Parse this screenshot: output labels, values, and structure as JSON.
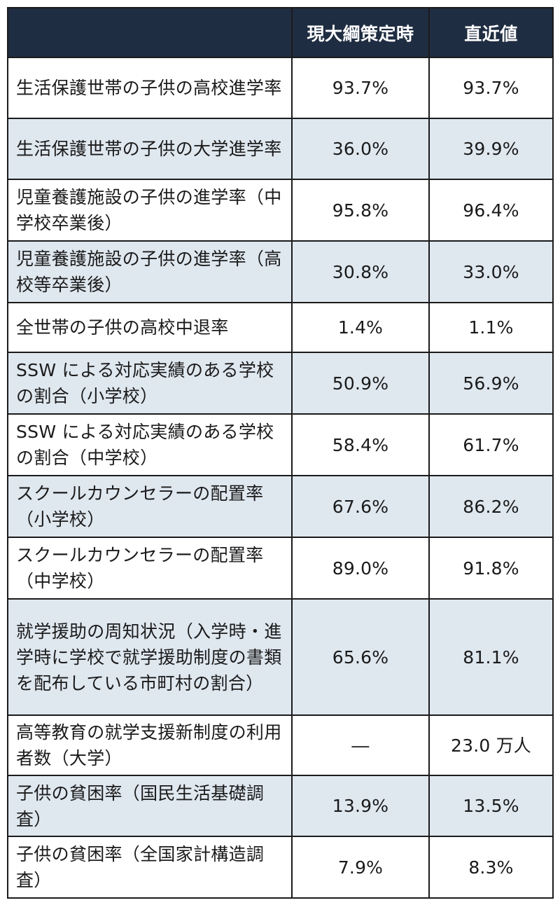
{
  "table": {
    "headers": [
      "",
      "現大綱策定時",
      "直近値"
    ],
    "rows": [
      {
        "label": "生活保護世帯の子供の高校進学率",
        "current_outline": "93.7%",
        "latest": "93.7%"
      },
      {
        "label": "生活保護世帯の子供の大学進学率",
        "current_outline": "36.0%",
        "latest": "39.9%"
      },
      {
        "label": "児童養護施設の子供の進学率（中学校卒業後）",
        "current_outline": "95.8%",
        "latest": "96.4%"
      },
      {
        "label": "児童養護施設の子供の進学率（高校等卒業後）",
        "current_outline": "30.8%",
        "latest": "33.0%"
      },
      {
        "label": "全世帯の子供の高校中退率",
        "current_outline": "1.4%",
        "latest": "1.1%"
      },
      {
        "label": "SSW による対応実績のある学校の割合（小学校）",
        "current_outline": "50.9%",
        "latest": "56.9%"
      },
      {
        "label": "SSW による対応実績のある学校の割合（中学校）",
        "current_outline": "58.4%",
        "latest": "61.7%"
      },
      {
        "label": "スクールカウンセラーの配置率（小学校）",
        "current_outline": "67.6%",
        "latest": "86.2%"
      },
      {
        "label": "スクールカウンセラーの配置率（中学校）",
        "current_outline": "89.0%",
        "latest": "91.8%"
      },
      {
        "label": "就学援助の周知状況（入学時・進学時に学校で就学援助制度の書類を配布している市町村の割合）",
        "current_outline": "65.6%",
        "latest": "81.1%"
      },
      {
        "label": "高等教育の就学支援新制度の利用者数（大学）",
        "current_outline": "―",
        "latest": "23.0 万人"
      },
      {
        "label": "子供の貧困率（国民生活基礎調査）",
        "current_outline": "13.9%",
        "latest": "13.5%"
      },
      {
        "label": "子供の貧困率（全国家計構造調査）",
        "current_outline": "7.9%",
        "latest": "8.3%"
      }
    ]
  },
  "colors": {
    "header_bg": "#1f2d42",
    "header_text": "#ffffff",
    "shaded_row": "#dfe7ef",
    "plain_row": "#ffffff",
    "border": "#1b1b1b"
  }
}
